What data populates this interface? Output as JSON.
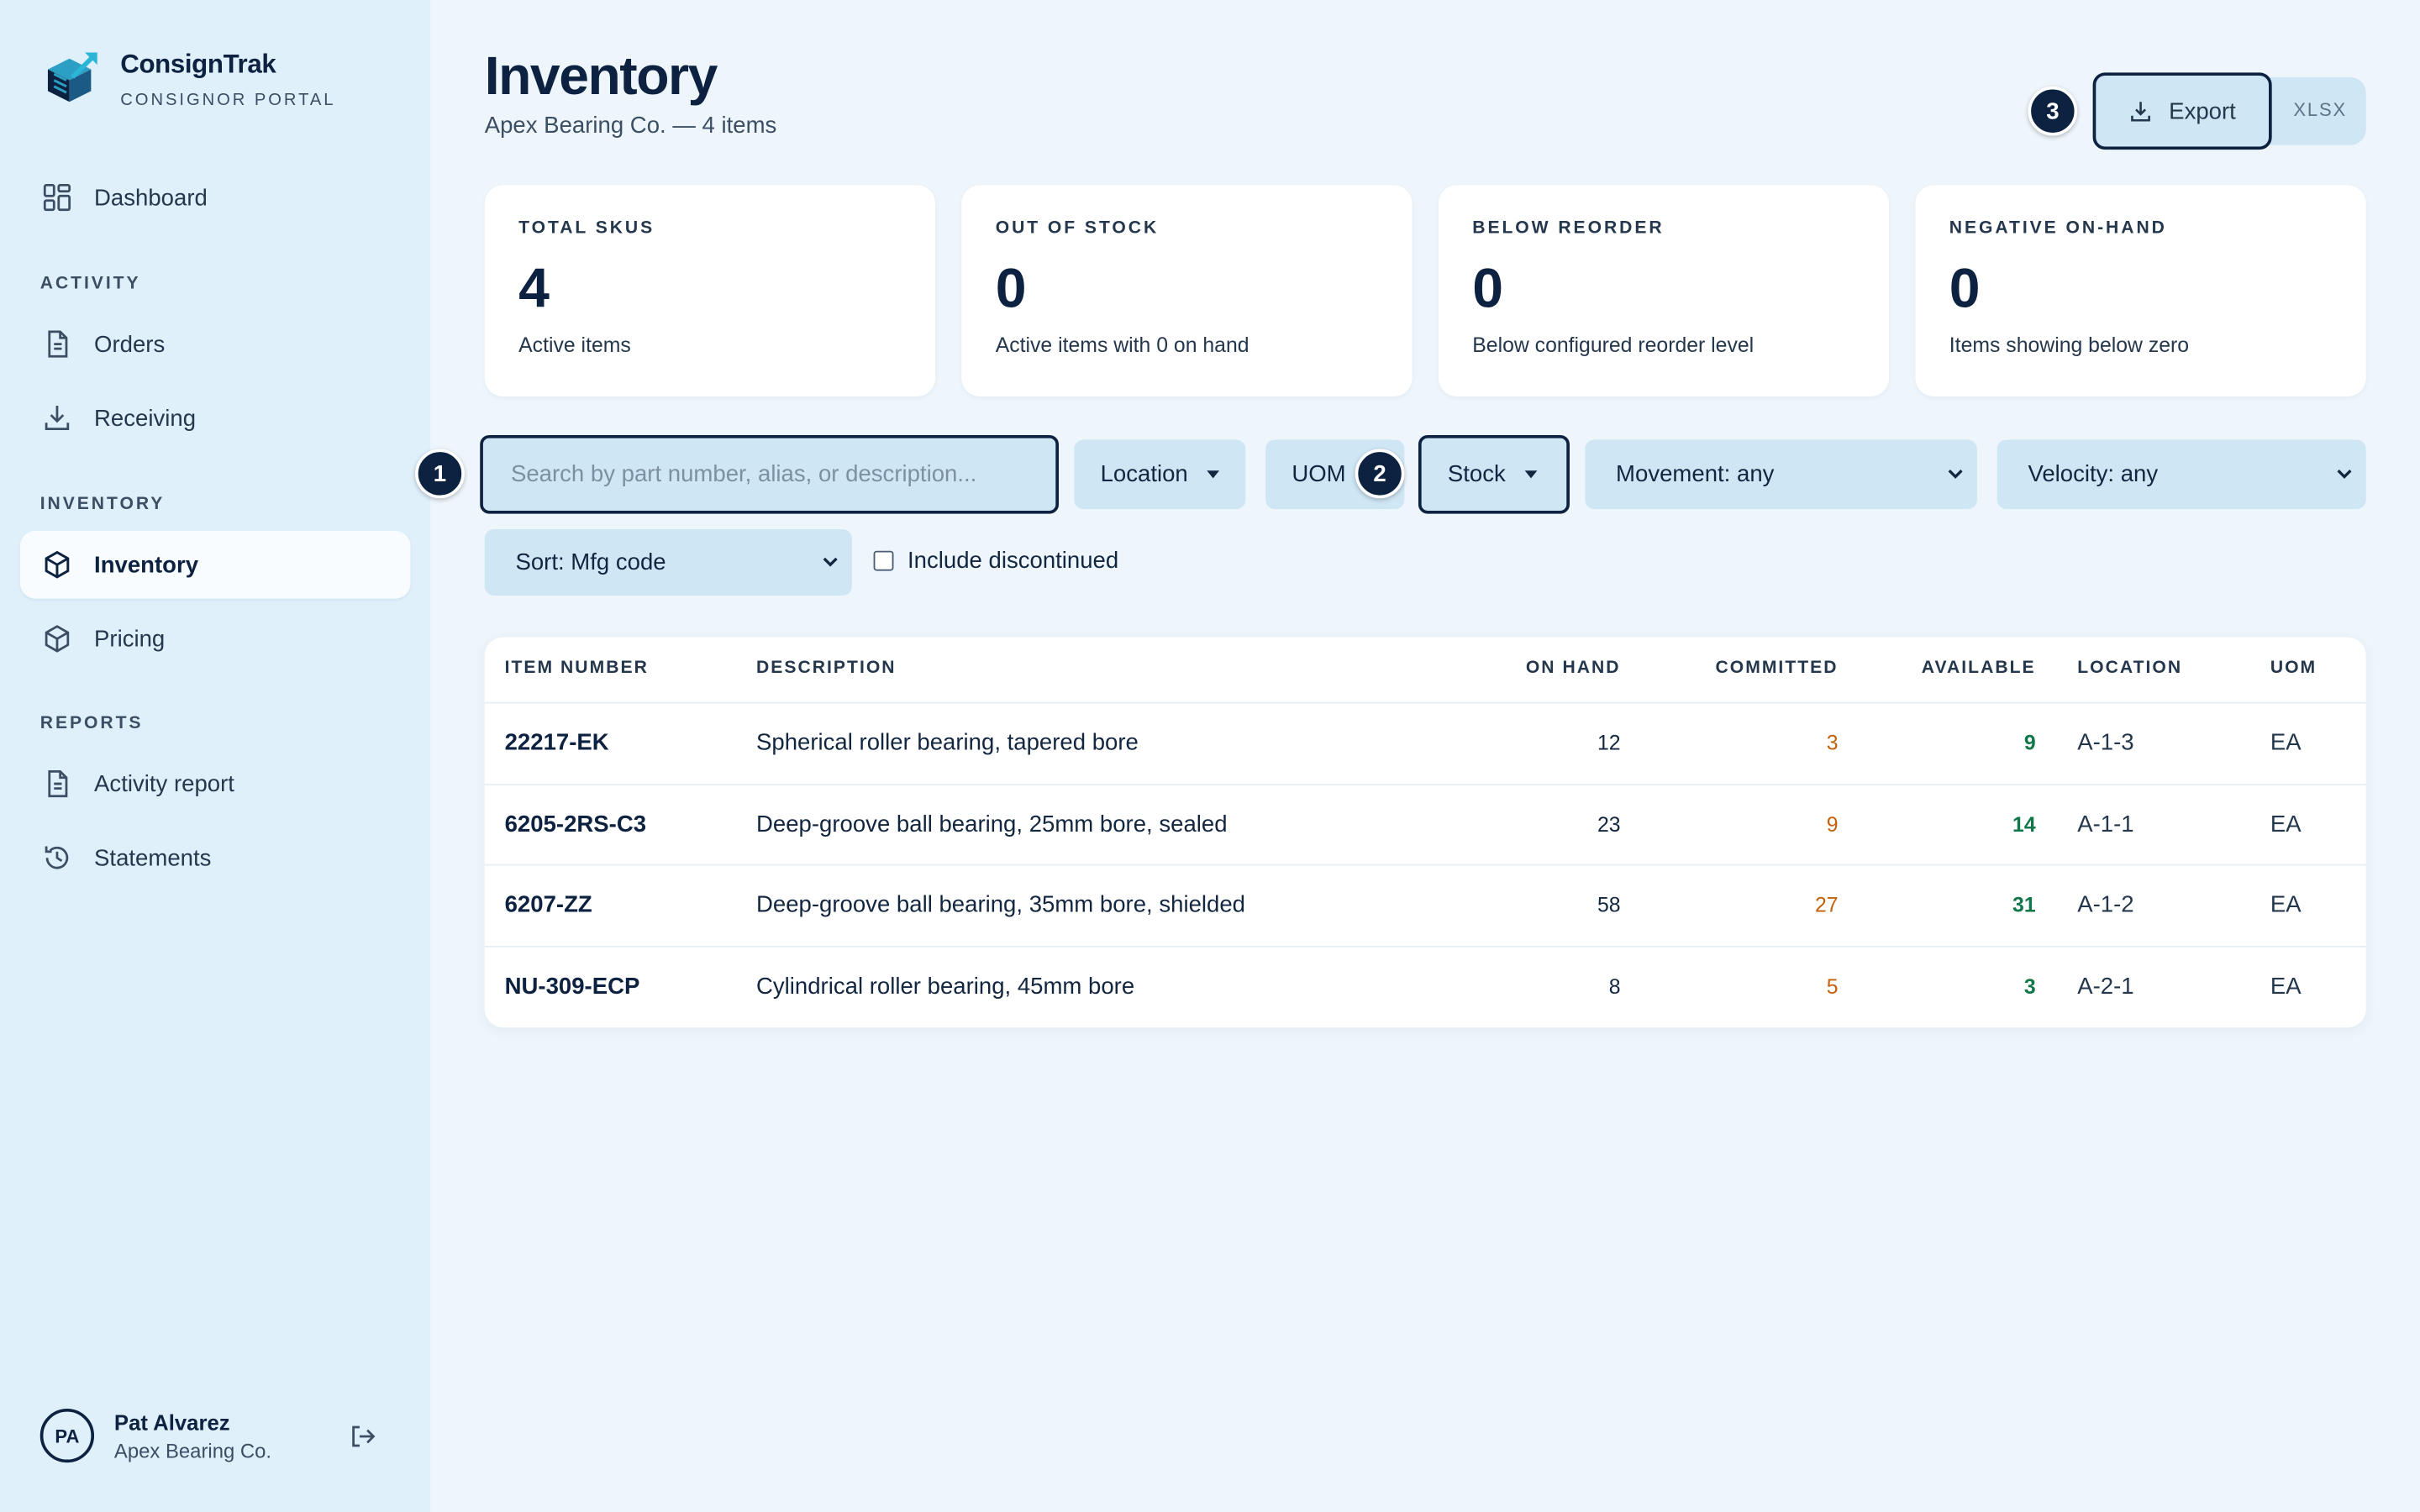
{
  "brand": {
    "name": "ConsignTrak",
    "subtitle": "CONSIGNOR PORTAL"
  },
  "sidebar": {
    "dashboard": "Dashboard",
    "sections": {
      "activity": "ACTIVITY",
      "inventory": "INVENTORY",
      "reports": "REPORTS"
    },
    "items": {
      "orders": "Orders",
      "receiving": "Receiving",
      "inventory": "Inventory",
      "pricing": "Pricing",
      "activity_report": "Activity report",
      "statements": "Statements"
    },
    "active": "Inventory"
  },
  "user": {
    "initials": "PA",
    "name": "Pat Alvarez",
    "org": "Apex Bearing Co."
  },
  "page": {
    "title": "Inventory",
    "subtitle": "Apex Bearing Co. — 4 items"
  },
  "export": {
    "label": "Export",
    "format": "XLSX"
  },
  "badges": {
    "one": "1",
    "two": "2",
    "three": "3"
  },
  "cards": [
    {
      "label": "TOTAL SKUS",
      "value": "4",
      "desc": "Active items"
    },
    {
      "label": "OUT OF STOCK",
      "value": "0",
      "desc": "Active items with 0 on hand"
    },
    {
      "label": "BELOW REORDER",
      "value": "0",
      "desc": "Below configured reorder level"
    },
    {
      "label": "NEGATIVE ON-HAND",
      "value": "0",
      "desc": "Items showing below zero"
    }
  ],
  "filters": {
    "search_placeholder": "Search by part number, alias, or description...",
    "search_value": "",
    "location": "Location",
    "uom": "UOM",
    "stock": "Stock",
    "movement": "Movement: any",
    "velocity": "Velocity: any",
    "sort": "Sort: Mfg code",
    "include_discontinued": "Include discontinued",
    "include_discontinued_checked": false
  },
  "table": {
    "headers": {
      "item": "ITEM NUMBER",
      "description": "DESCRIPTION",
      "on_hand": "ON HAND",
      "committed": "COMMITTED",
      "available": "AVAILABLE",
      "location": "LOCATION",
      "uom": "UOM"
    },
    "rows": [
      {
        "item": "22217-EK",
        "description": "Spherical roller bearing, tapered bore",
        "on_hand": "12",
        "committed": "3",
        "available": "9",
        "location": "A-1-3",
        "uom": "EA"
      },
      {
        "item": "6205-2RS-C3",
        "description": "Deep-groove ball bearing, 25mm bore, sealed",
        "on_hand": "23",
        "committed": "9",
        "available": "14",
        "location": "A-1-1",
        "uom": "EA"
      },
      {
        "item": "6207-ZZ",
        "description": "Deep-groove ball bearing, 35mm bore, shielded",
        "on_hand": "58",
        "committed": "27",
        "available": "31",
        "location": "A-1-2",
        "uom": "EA"
      },
      {
        "item": "NU-309-ECP",
        "description": "Cylindrical roller bearing, 45mm bore",
        "on_hand": "8",
        "committed": "5",
        "available": "3",
        "location": "A-2-1",
        "uom": "EA"
      }
    ]
  },
  "colors": {
    "background": "#eef6fc",
    "sidebar": "#dff0fb",
    "navy": "#0d2240",
    "committed": "#c2620d",
    "available": "#11774a",
    "control": "#cfe6f5"
  }
}
